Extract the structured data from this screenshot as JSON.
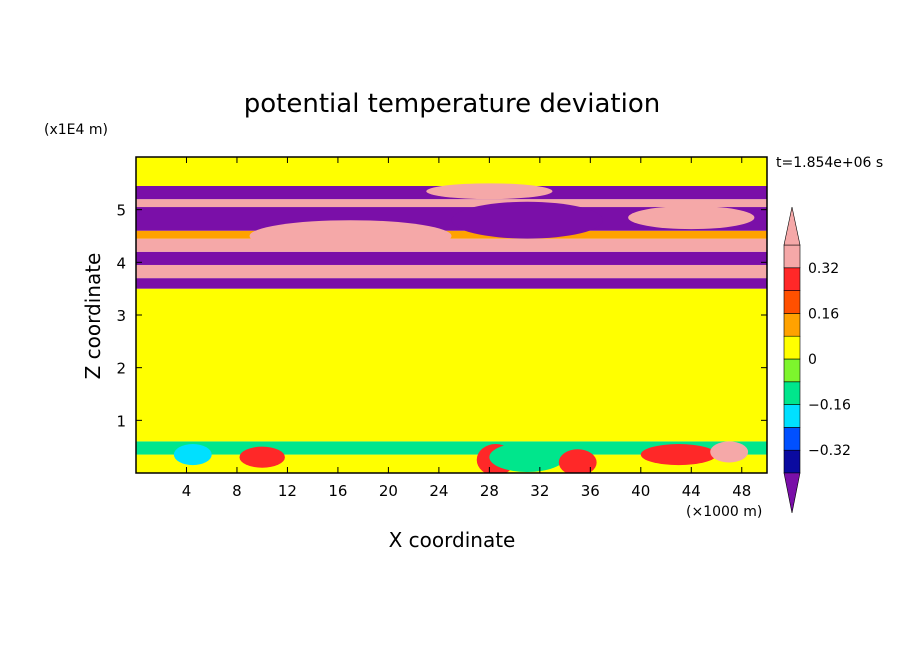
{
  "chart_data": {
    "type": "heatmap",
    "title": "potential temperature deviation",
    "time_label": "t=1.854e+06 s",
    "xlabel": "X coordinate",
    "ylabel": "Z coordinate",
    "x_unit": "(×1000 m)",
    "y_unit": "(x1E4 m)",
    "xlim": [
      0,
      50
    ],
    "ylim": [
      0,
      6
    ],
    "x_ticks": [
      "4",
      "8",
      "12",
      "16",
      "20",
      "24",
      "28",
      "32",
      "36",
      "40",
      "44",
      "48"
    ],
    "x_tick_values": [
      4,
      8,
      12,
      16,
      20,
      24,
      28,
      32,
      36,
      40,
      44,
      48
    ],
    "y_ticks": [
      "1",
      "2",
      "3",
      "4",
      "5"
    ],
    "y_tick_values": [
      1,
      2,
      3,
      4,
      5
    ],
    "colorbar": {
      "levels": [
        -0.4,
        -0.32,
        -0.24,
        -0.16,
        -0.08,
        0,
        0.08,
        0.16,
        0.24,
        0.32,
        0.4
      ],
      "labels": [
        "0.32",
        "0.16",
        "0",
        "−0.16",
        "−0.32"
      ],
      "label_values": [
        0.32,
        0.16,
        0,
        -0.16,
        -0.32
      ],
      "colors": [
        "#7a0fa8",
        "#0a0aa0",
        "#0050ff",
        "#00e0ff",
        "#00e68c",
        "#7df52d",
        "#ffff00",
        "#ffa200",
        "#ff5000",
        "#ff2828",
        "#f5a8a8"
      ],
      "extend": "both"
    },
    "bands": [
      {
        "z0": 0,
        "z1": 0.35,
        "value": 0.05
      },
      {
        "z0": 0.35,
        "z1": 0.6,
        "value": -0.1
      },
      {
        "z0": 0.6,
        "z1": 3.5,
        "value": 0.04
      },
      {
        "z0": 3.5,
        "z1": 3.7,
        "value": -0.45
      },
      {
        "z0": 3.7,
        "z1": 3.95,
        "value": 0.45
      },
      {
        "z0": 3.95,
        "z1": 4.2,
        "value": -0.45
      },
      {
        "z0": 4.2,
        "z1": 4.45,
        "value": 0.45
      },
      {
        "z0": 4.45,
        "z1": 4.6,
        "value": 0.12
      },
      {
        "z0": 4.6,
        "z1": 5.05,
        "value": -0.45
      },
      {
        "z0": 5.05,
        "z1": 5.2,
        "value": 0.45
      },
      {
        "z0": 5.2,
        "z1": 5.45,
        "value": -0.45
      },
      {
        "z0": 5.45,
        "z1": 6.0,
        "value": 0.04
      }
    ],
    "patches": [
      {
        "x": 17,
        "z": 4.5,
        "rx": 8,
        "rz": 0.3,
        "value": 0.45
      },
      {
        "x": 28,
        "z": 5.35,
        "rx": 5,
        "rz": 0.15,
        "value": 0.45
      },
      {
        "x": 31,
        "z": 4.8,
        "rx": 6,
        "rz": 0.35,
        "value": -0.45
      },
      {
        "x": 44,
        "z": 4.85,
        "rx": 5,
        "rz": 0.22,
        "value": 0.45
      },
      {
        "x": 4.5,
        "z": 0.35,
        "rx": 1.5,
        "rz": 0.2,
        "value": -0.2
      },
      {
        "x": 10,
        "z": 0.3,
        "rx": 1.8,
        "rz": 0.2,
        "value": 0.3
      },
      {
        "x": 28.5,
        "z": 0.25,
        "rx": 1.5,
        "rz": 0.3,
        "value": 0.3
      },
      {
        "x": 31,
        "z": 0.3,
        "rx": 3,
        "rz": 0.28,
        "value": -0.15
      },
      {
        "x": 35,
        "z": 0.2,
        "rx": 1.5,
        "rz": 0.25,
        "value": 0.3
      },
      {
        "x": 43,
        "z": 0.35,
        "rx": 3,
        "rz": 0.2,
        "value": 0.3
      },
      {
        "x": 47,
        "z": 0.4,
        "rx": 1.5,
        "rz": 0.2,
        "value": 0.45
      }
    ]
  }
}
